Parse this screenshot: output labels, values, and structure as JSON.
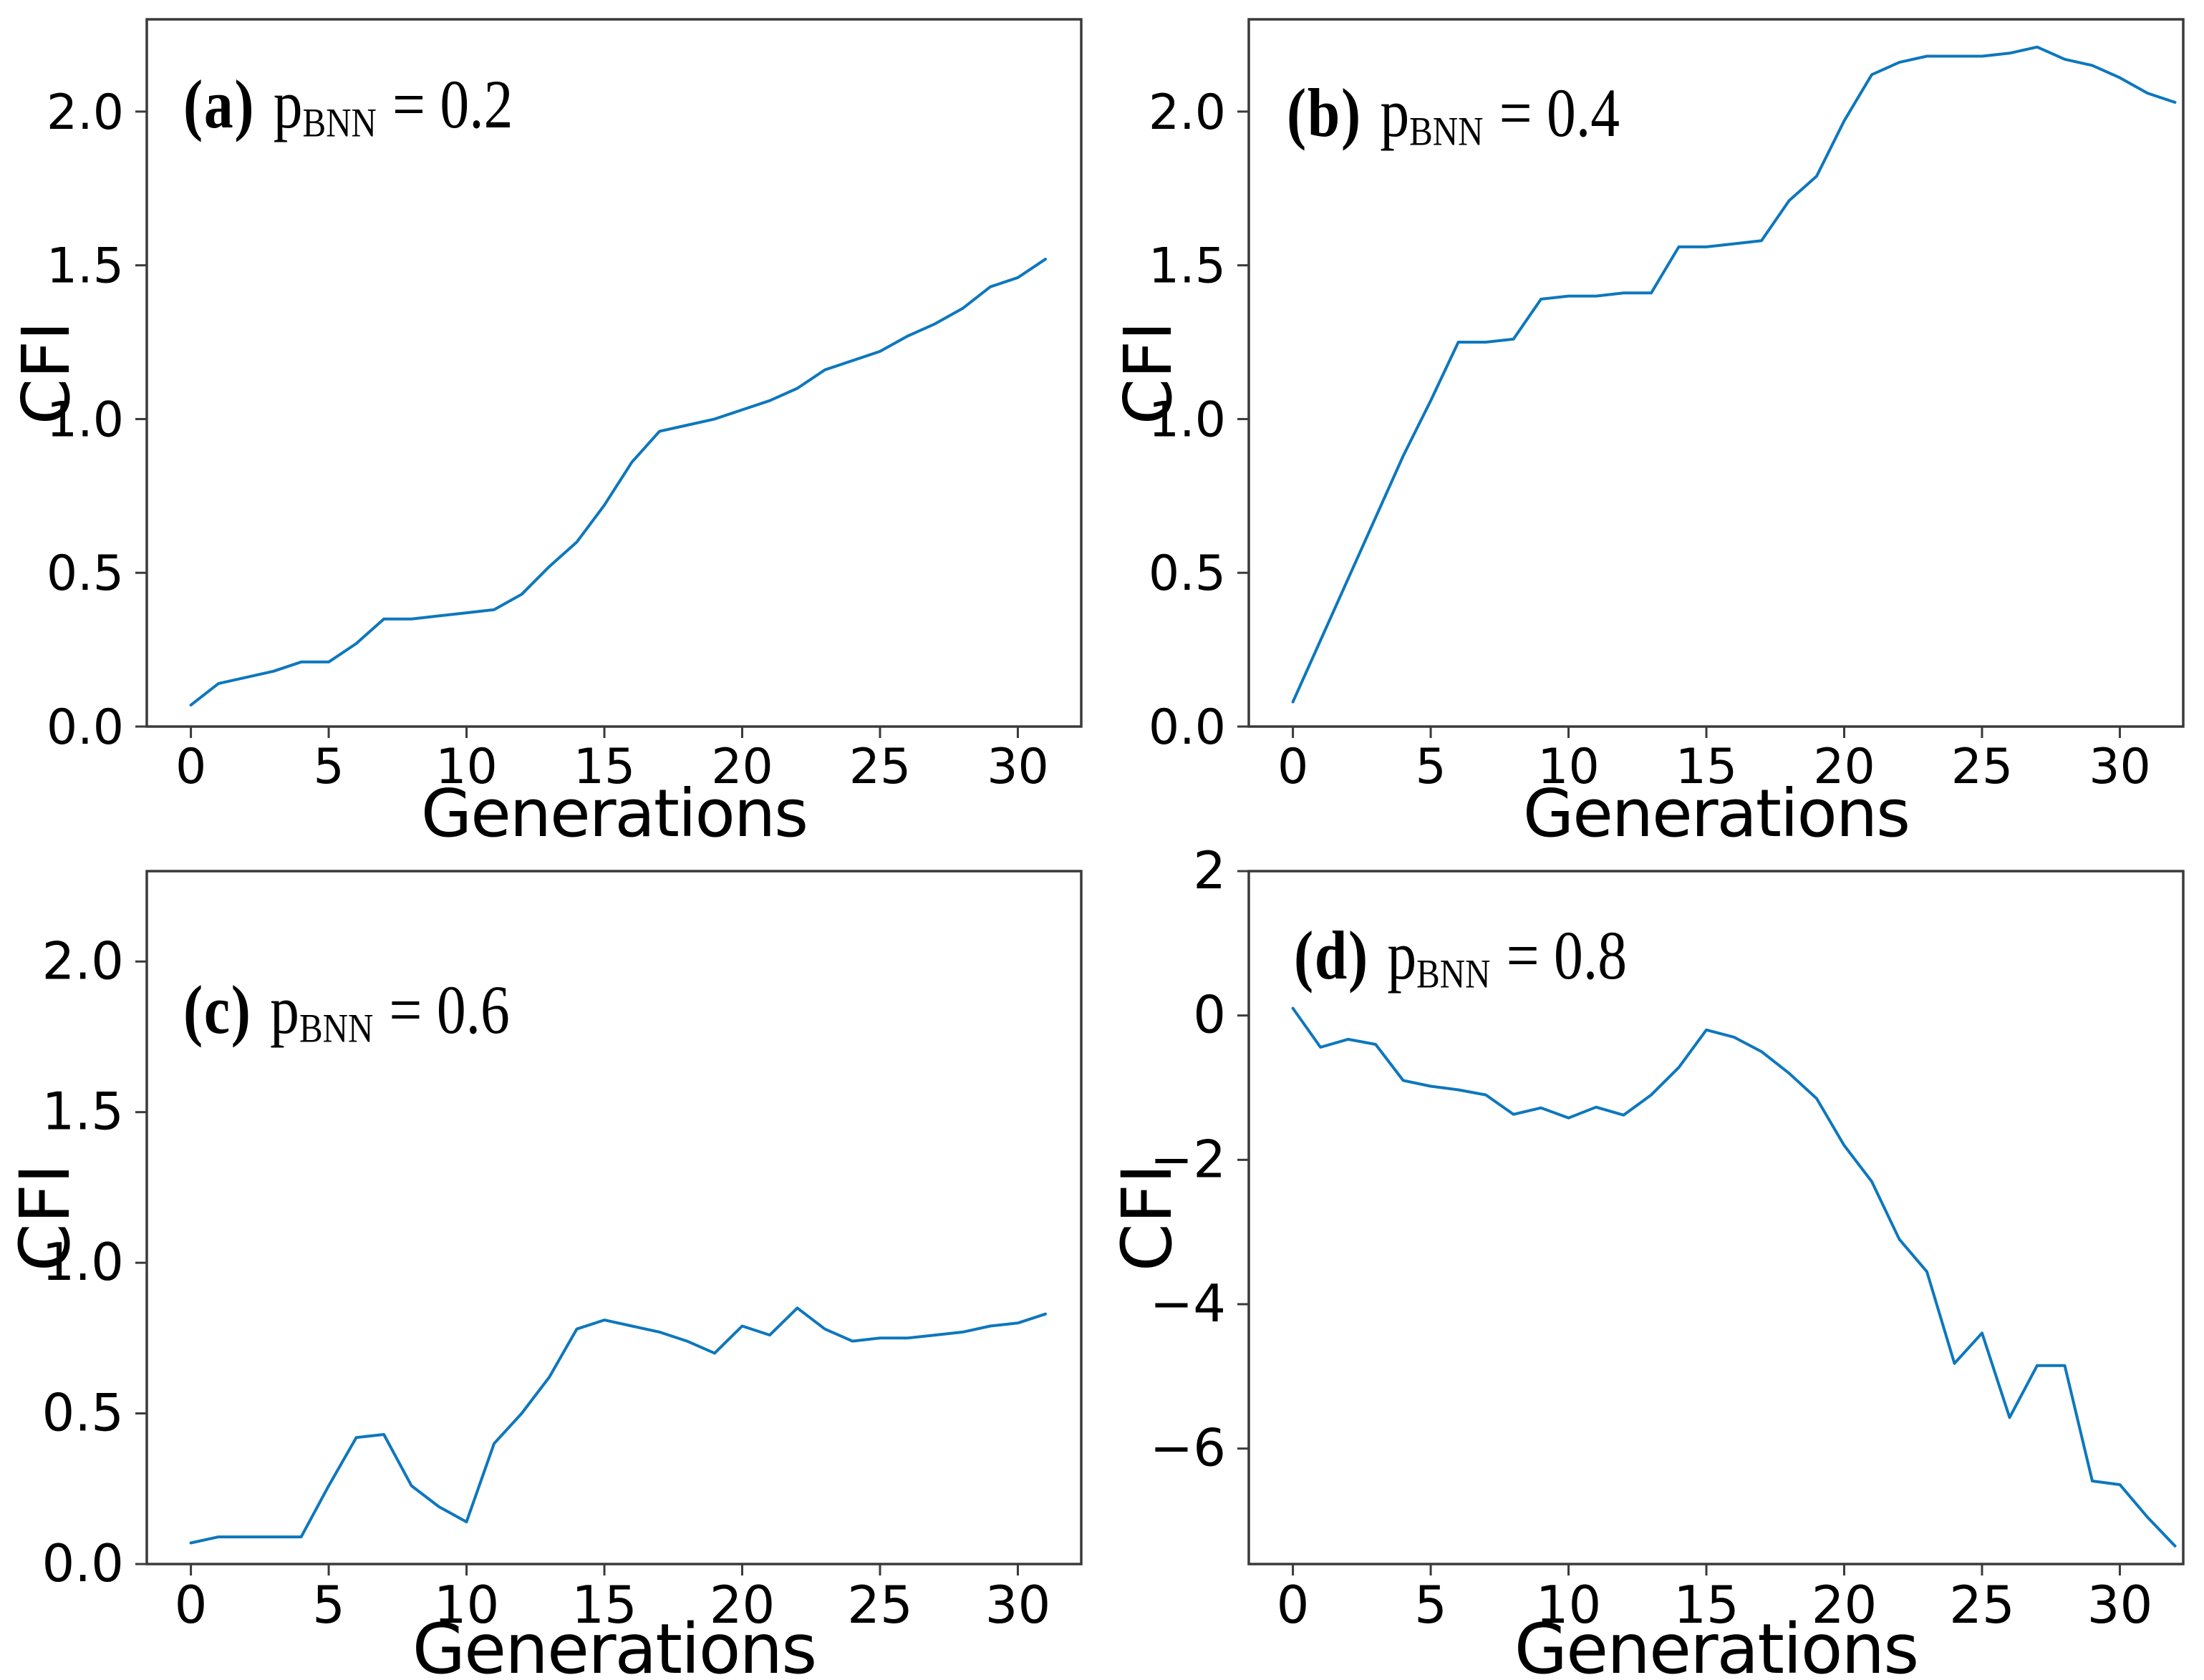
{
  "figure": {
    "background_color": "#ffffff",
    "line_color": "#0d77bd",
    "spine_color": "#3a3a3a",
    "text_color": "#000000"
  },
  "chart_data": [
    {
      "id": "a",
      "type": "line",
      "title": {
        "tag": "(a)",
        "var": "p",
        "sub": "BNN",
        "eq": "= 0.2"
      },
      "xlabel": "Generations",
      "ylabel": "CFI",
      "legend_position": "none",
      "grid": false,
      "xlim": [
        -1.6,
        32.3
      ],
      "ylim": [
        0,
        2.3
      ],
      "xticks": [
        0,
        5,
        10,
        15,
        20,
        25,
        30
      ],
      "xtick_labels": [
        "0",
        "5",
        "10",
        "15",
        "20",
        "25",
        "30"
      ],
      "yticks": [
        0.0,
        0.5,
        1.0,
        1.5,
        2.0
      ],
      "ytick_labels": [
        "0.0",
        "0.5",
        "1.0",
        "1.5",
        "2.0"
      ],
      "x": [
        0,
        1,
        2,
        3,
        4,
        5,
        6,
        7,
        8,
        9,
        10,
        11,
        12,
        13,
        14,
        15,
        16,
        17,
        18,
        19,
        20,
        21,
        22,
        23,
        24,
        25,
        26,
        27,
        28,
        29,
        30,
        31
      ],
      "y": [
        0.07,
        0.14,
        0.16,
        0.18,
        0.21,
        0.21,
        0.27,
        0.35,
        0.35,
        0.36,
        0.37,
        0.38,
        0.43,
        0.52,
        0.6,
        0.72,
        0.86,
        0.96,
        0.98,
        1.0,
        1.03,
        1.06,
        1.1,
        1.16,
        1.19,
        1.22,
        1.27,
        1.31,
        1.36,
        1.43,
        1.46,
        1.52
      ]
    },
    {
      "id": "b",
      "type": "line",
      "title": {
        "tag": "(b)",
        "var": "p",
        "sub": "BNN",
        "eq": "= 0.4"
      },
      "xlabel": "Generations",
      "ylabel": "CFI",
      "legend_position": "none",
      "grid": false,
      "xlim": [
        -1.6,
        32.3
      ],
      "ylim": [
        0,
        2.3
      ],
      "xticks": [
        0,
        5,
        10,
        15,
        20,
        25,
        30
      ],
      "xtick_labels": [
        "0",
        "5",
        "10",
        "15",
        "20",
        "25",
        "30"
      ],
      "yticks": [
        0.0,
        0.5,
        1.0,
        1.5,
        2.0
      ],
      "ytick_labels": [
        "0.0",
        "0.5",
        "1.0",
        "1.5",
        "2.0"
      ],
      "x": [
        0,
        1,
        2,
        3,
        4,
        5,
        6,
        7,
        8,
        9,
        10,
        11,
        12,
        13,
        14,
        15,
        16,
        17,
        18,
        19,
        20,
        21,
        22,
        23,
        24,
        25,
        26,
        27,
        28,
        29,
        30,
        31,
        32
      ],
      "y": [
        0.08,
        0.28,
        0.48,
        0.68,
        0.88,
        1.06,
        1.25,
        1.25,
        1.26,
        1.39,
        1.4,
        1.4,
        1.41,
        1.41,
        1.56,
        1.56,
        1.57,
        1.58,
        1.71,
        1.79,
        1.97,
        2.12,
        2.16,
        2.18,
        2.18,
        2.18,
        2.19,
        2.21,
        2.17,
        2.15,
        2.11,
        2.06,
        2.03
      ]
    },
    {
      "id": "c",
      "type": "line",
      "title": {
        "tag": "(c)",
        "var": "p",
        "sub": "BNN",
        "eq": "= 0.6"
      },
      "xlabel": "Generations",
      "ylabel": "CFI",
      "legend_position": "none",
      "grid": false,
      "xlim": [
        -1.6,
        32.3
      ],
      "ylim": [
        0,
        2.3
      ],
      "xticks": [
        0,
        5,
        10,
        15,
        20,
        25,
        30
      ],
      "xtick_labels": [
        "0",
        "5",
        "10",
        "15",
        "20",
        "25",
        "30"
      ],
      "yticks": [
        0.0,
        0.5,
        1.0,
        1.5,
        2.0
      ],
      "ytick_labels": [
        "0.0",
        "0.5",
        "1.0",
        "1.5",
        "2.0"
      ],
      "x": [
        0,
        1,
        2,
        3,
        4,
        5,
        6,
        7,
        8,
        9,
        10,
        11,
        12,
        13,
        14,
        15,
        16,
        17,
        18,
        19,
        20,
        21,
        22,
        23,
        24,
        25,
        26,
        27,
        28,
        29,
        30,
        31
      ],
      "y": [
        0.07,
        0.09,
        0.09,
        0.09,
        0.09,
        0.26,
        0.42,
        0.43,
        0.26,
        0.19,
        0.14,
        0.4,
        0.5,
        0.62,
        0.78,
        0.81,
        0.79,
        0.77,
        0.74,
        0.7,
        0.79,
        0.76,
        0.85,
        0.78,
        0.74,
        0.75,
        0.75,
        0.76,
        0.77,
        0.79,
        0.8,
        0.83
      ]
    },
    {
      "id": "d",
      "type": "line",
      "title": {
        "tag": "(d)",
        "var": "p",
        "sub": "BNN",
        "eq": "= 0.8"
      },
      "xlabel": "Generations",
      "ylabel": "CFI",
      "legend_position": "none",
      "grid": false,
      "xlim": [
        -1.6,
        32.3
      ],
      "ylim": [
        -7.6,
        2.0
      ],
      "xticks": [
        0,
        5,
        10,
        15,
        20,
        25,
        30
      ],
      "xtick_labels": [
        "0",
        "5",
        "10",
        "15",
        "20",
        "25",
        "30"
      ],
      "yticks": [
        2,
        0,
        -2,
        -4,
        -6
      ],
      "ytick_labels": [
        "2",
        "0",
        "−2",
        "−4",
        "−6"
      ],
      "x": [
        0,
        1,
        2,
        3,
        4,
        5,
        6,
        7,
        8,
        9,
        10,
        11,
        12,
        13,
        14,
        15,
        16,
        17,
        18,
        19,
        20,
        21,
        22,
        23,
        24,
        25,
        26,
        27,
        28,
        29,
        30,
        31,
        32
      ],
      "y": [
        0.1,
        -0.44,
        -0.33,
        -0.4,
        -0.9,
        -0.98,
        -1.03,
        -1.1,
        -1.37,
        -1.28,
        -1.42,
        -1.27,
        -1.38,
        -1.1,
        -0.72,
        -0.2,
        -0.3,
        -0.5,
        -0.8,
        -1.15,
        -1.8,
        -2.3,
        -3.1,
        -3.55,
        -4.82,
        -4.4,
        -5.57,
        -4.85,
        -4.85,
        -6.45,
        -6.5,
        -6.95,
        -7.35
      ]
    }
  ]
}
